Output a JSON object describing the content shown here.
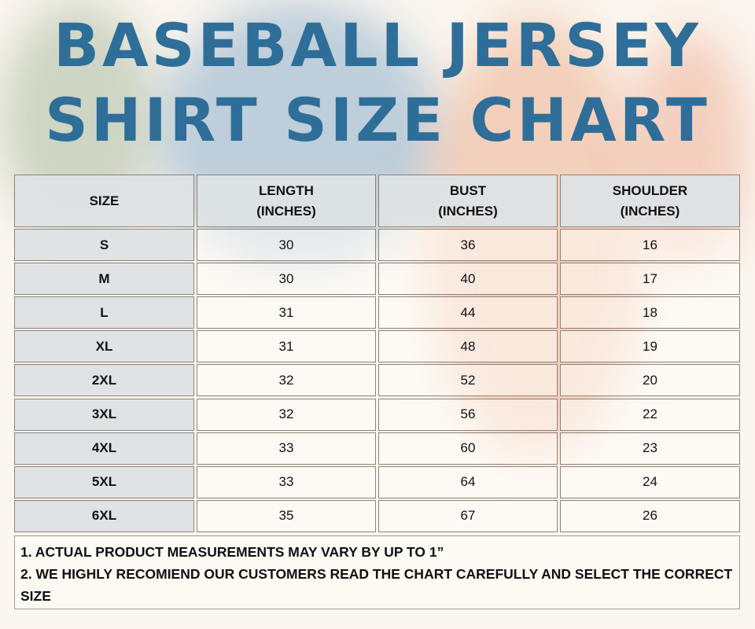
{
  "title": {
    "line1": "BASEBALL JERSEY",
    "line2": "SHIRT SIZE CHART",
    "color": "#2e6e99"
  },
  "table": {
    "headers": [
      "SIZE",
      "LENGTH\n(INCHES)",
      "BUST\n(INCHES)",
      "SHOULDER\n(INCHES)"
    ],
    "rows": [
      [
        "S",
        "30",
        "36",
        "16"
      ],
      [
        "M",
        "30",
        "40",
        "17"
      ],
      [
        "L",
        "31",
        "44",
        "18"
      ],
      [
        "XL",
        "31",
        "48",
        "19"
      ],
      [
        "2XL",
        "32",
        "52",
        "20"
      ],
      [
        "3XL",
        "32",
        "56",
        "22"
      ],
      [
        "4XL",
        "33",
        "60",
        "23"
      ],
      [
        "5XL",
        "33",
        "64",
        "24"
      ],
      [
        "6XL",
        "35",
        "67",
        "26"
      ]
    ]
  },
  "notes": [
    "1. ACTUAL PRODUCT MEASUREMENTS MAY VARY BY UP TO 1”",
    "2. WE HIGHLY RECOMIEND OUR CUSTOMERS READ THE CHART CAREFULLY AND SELECT THE CORRECT SIZE"
  ]
}
